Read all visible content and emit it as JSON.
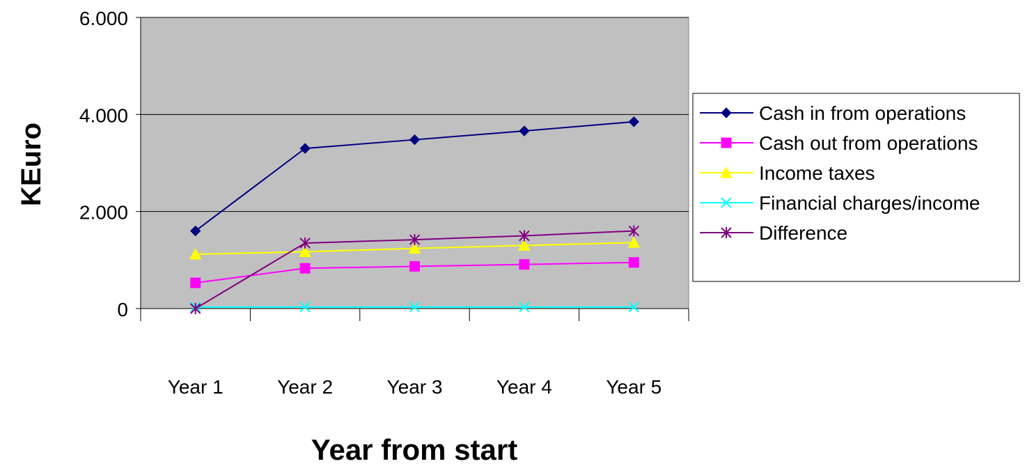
{
  "chart_data": {
    "type": "line",
    "title": "",
    "xlabel": "Year from start",
    "ylabel": "KEuro",
    "categories": [
      "Year 1",
      "Year 2",
      "Year 3",
      "Year 4",
      "Year 5"
    ],
    "y_tick_labels": [
      "0",
      "2.000",
      "4.000",
      "6.000"
    ],
    "y_tick_values": [
      0,
      2000,
      4000,
      6000
    ],
    "ylim": [
      0,
      6000
    ],
    "grid": true,
    "plot_background": "#c0c0c0",
    "legend_position": "right",
    "series": [
      {
        "name": "Cash in from operations",
        "color": "#000080",
        "marker": "diamond",
        "values": [
          1600,
          3300,
          3480,
          3660,
          3850
        ]
      },
      {
        "name": "Cash out from operations",
        "color": "#ff00ff",
        "marker": "square",
        "values": [
          530,
          830,
          870,
          910,
          950
        ]
      },
      {
        "name": "Income taxes",
        "color": "#ffff00",
        "marker": "triangle",
        "values": [
          1120,
          1170,
          1240,
          1300,
          1360
        ]
      },
      {
        "name": "Financial charges/income",
        "color": "#00ffff",
        "marker": "x",
        "values": [
          30,
          30,
          30,
          30,
          30
        ]
      },
      {
        "name": "Difference",
        "color": "#800080",
        "marker": "star",
        "values": [
          0,
          1350,
          1420,
          1500,
          1600
        ]
      }
    ]
  }
}
